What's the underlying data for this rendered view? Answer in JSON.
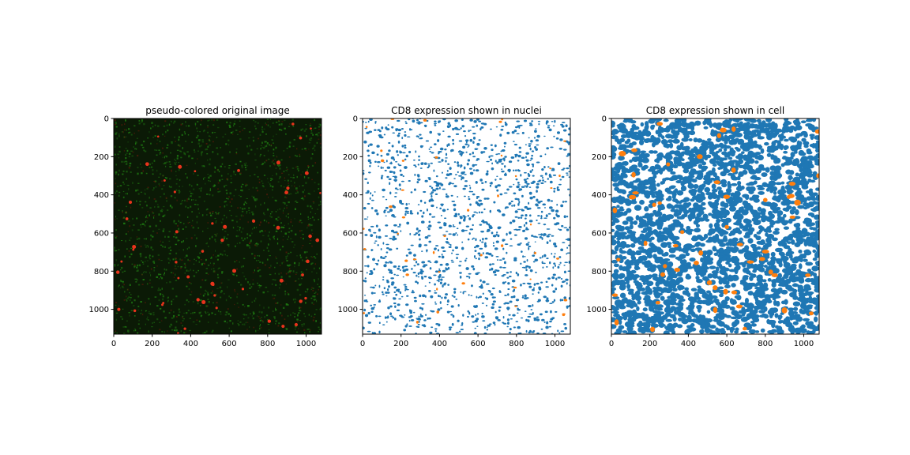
{
  "chart_data": [
    {
      "type": "heatmap",
      "title": "pseudo-colored original image",
      "image_kind": "pseudo-colored fluorescence (red + green channels on black)",
      "xlim": [
        0,
        1080
      ],
      "ylim": [
        1130,
        0
      ],
      "xticks": [
        0,
        200,
        400,
        600,
        800,
        1000
      ],
      "yticks": [
        0,
        200,
        400,
        600,
        800,
        1000
      ],
      "colors": {
        "background": "#0b1a06",
        "green_signal": "#1f7a12",
        "red_signal": "#e8341c"
      }
    },
    {
      "type": "heatmap",
      "title": "CD8 expression shown in nuclei",
      "image_kind": "segmentation mask (nuclei)",
      "xlim": [
        0,
        1080
      ],
      "ylim": [
        1130,
        0
      ],
      "xticks": [
        0,
        200,
        400,
        600,
        800,
        1000
      ],
      "yticks": [
        0,
        200,
        400,
        600,
        800,
        1000
      ],
      "colors": {
        "background": "#ffffff",
        "negative": "#1f77b4",
        "positive": "#ff7f0e"
      }
    },
    {
      "type": "heatmap",
      "title": "CD8 expression shown in cell",
      "image_kind": "segmentation mask (whole cell)",
      "xlim": [
        0,
        1080
      ],
      "ylim": [
        1130,
        0
      ],
      "xticks": [
        0,
        200,
        400,
        600,
        800,
        1000
      ],
      "yticks": [
        0,
        200,
        400,
        600,
        800,
        1000
      ],
      "colors": {
        "background": "#ffffff",
        "negative": "#1f77b4",
        "positive": "#ff7f0e"
      }
    }
  ]
}
